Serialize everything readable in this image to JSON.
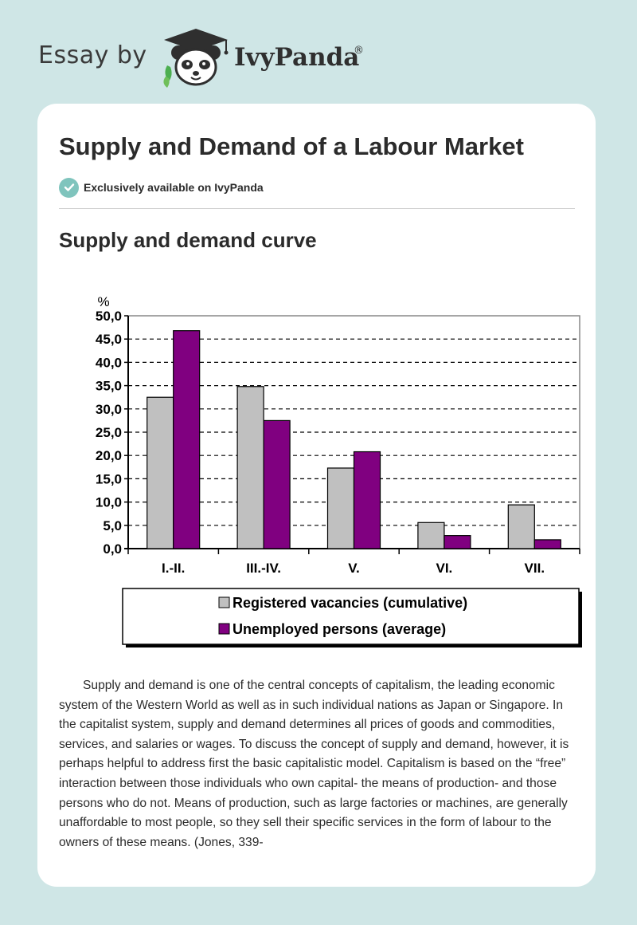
{
  "header": {
    "brand_prefix": "Essay by",
    "brand_name": "IvyPanda",
    "brand_reg": "®",
    "logo_icon": "panda-graduate-icon"
  },
  "article": {
    "title": "Supply and Demand of a Labour Market",
    "badge_label": "Exclusively available on IvyPanda",
    "badge_icon": "check-icon",
    "section_title": "Supply and demand curve",
    "paragraph": "Supply and demand is one of the central concepts of capitalism, the leading economic system of the Western World as well as in such individual nations as Japan or Singapore. In the capitalist system, supply and demand determines all prices of goods and commodities, services, and salaries or wages. To discuss the concept of supply and demand, however, it is perhaps helpful to address first the basic capitalistic model. Capitalism is based on the “free” interaction between those individuals who own capital- the means of production- and those persons who do not. Means of production, such as large factories or machines, are generally unaffordable to most people, so they sell their specific services in the form of labour to the owners of these means. (Jones, 339-"
  },
  "chart_data": {
    "type": "bar",
    "y_unit": "%",
    "categories": [
      "I.-II.",
      "III.-IV.",
      "V.",
      "VI.",
      "VII."
    ],
    "series": [
      {
        "name": "Registered vacancies (cumulative)",
        "color": "#c0c0c0",
        "values": [
          32.5,
          34.8,
          17.3,
          5.6,
          9.4
        ]
      },
      {
        "name": "Unemployed persons (average)",
        "color": "#800080",
        "values": [
          46.8,
          27.5,
          20.8,
          2.8,
          1.9
        ]
      }
    ],
    "yticks": [
      "0,0",
      "5,0",
      "10,0",
      "15,0",
      "20,0",
      "25,0",
      "30,0",
      "35,0",
      "40,0",
      "45,0",
      "50,0"
    ],
    "ylim": [
      0,
      50
    ],
    "grid": true,
    "legend": "bottom"
  }
}
